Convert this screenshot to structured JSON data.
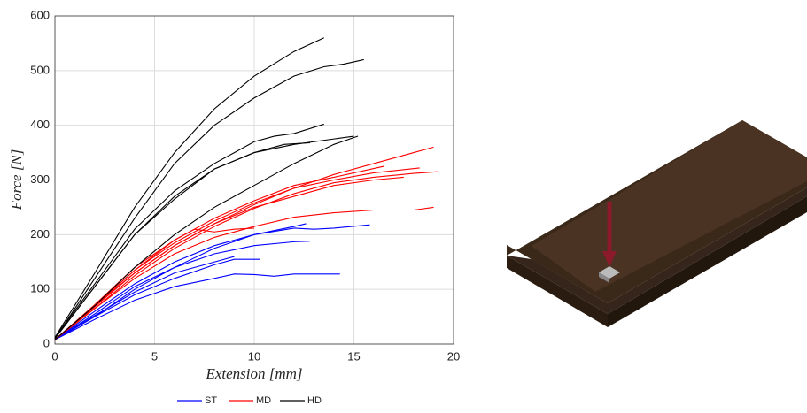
{
  "chart_data": {
    "type": "line",
    "x_label": "Extension [mm]",
    "y_label": "Force [N]",
    "xlim": [
      0,
      20
    ],
    "xticks": [
      0,
      5,
      10,
      15,
      20
    ],
    "ylim": [
      0,
      600
    ],
    "yticks": [
      0,
      100,
      200,
      300,
      400,
      500,
      600
    ],
    "grid": true,
    "legend": "bottom",
    "series": [
      {
        "name": "ST",
        "color": "#0000ff",
        "curves": [
          {
            "x": [
              0,
              2,
              4,
              6,
              8,
              10,
              12,
              13,
              14,
              15.8
            ],
            "values": [
              8,
              50,
              100,
              140,
              175,
              200,
              212,
              210,
              212,
              218
            ]
          },
          {
            "x": [
              0,
              2,
              4,
              6,
              8,
              10,
              12,
              12.8
            ],
            "values": [
              8,
              55,
              105,
              140,
              165,
              180,
              187,
              188
            ]
          },
          {
            "x": [
              0,
              2,
              4,
              6,
              8,
              10,
              12,
              12.6
            ],
            "values": [
              8,
              60,
              110,
              150,
              180,
              200,
              215,
              220
            ]
          },
          {
            "x": [
              0,
              2,
              4,
              6,
              8,
              9,
              10.3
            ],
            "values": [
              8,
              50,
              90,
              120,
              145,
              155,
              155
            ]
          },
          {
            "x": [
              0,
              2,
              4,
              6,
              8,
              9,
              10,
              11,
              12,
              14.3
            ],
            "values": [
              8,
              45,
              80,
              105,
              120,
              128,
              127,
              124,
              128,
              128
            ]
          },
          {
            "x": [
              0,
              2,
              4,
              6,
              8,
              9
            ],
            "values": [
              8,
              52,
              95,
              130,
              150,
              160
            ]
          }
        ]
      },
      {
        "name": "MD",
        "color": "#ff0000",
        "curves": [
          {
            "x": [
              0,
              2,
              4,
              6,
              8,
              10,
              12,
              14,
              16,
              18,
              19
            ],
            "values": [
              8,
              70,
              130,
              180,
              220,
              255,
              285,
              310,
              330,
              350,
              360
            ]
          },
          {
            "x": [
              0,
              2,
              4,
              6,
              8,
              10,
              12,
              14,
              16,
              18,
              19.2
            ],
            "values": [
              8,
              65,
              125,
              175,
              215,
              248,
              275,
              295,
              305,
              312,
              315
            ]
          },
          {
            "x": [
              0,
              2,
              4,
              6,
              8,
              10,
              12,
              14,
              16,
              18.3
            ],
            "values": [
              8,
              70,
              135,
              185,
              225,
              258,
              285,
              300,
              313,
              322
            ]
          },
          {
            "x": [
              0,
              2,
              4,
              6,
              8,
              10,
              12,
              14,
              16.5
            ],
            "values": [
              8,
              72,
              140,
              190,
              230,
              262,
              290,
              305,
              325
            ]
          },
          {
            "x": [
              0,
              2,
              4,
              6,
              8,
              10,
              12,
              14,
              16,
              17.5
            ],
            "values": [
              8,
              68,
              130,
              180,
              220,
              250,
              270,
              290,
              300,
              305
            ]
          },
          {
            "x": [
              0,
              2,
              4,
              6,
              8,
              10,
              12,
              14,
              16,
              18,
              19
            ],
            "values": [
              8,
              65,
              120,
              165,
              195,
              215,
              232,
              240,
              245,
              245,
              250
            ]
          },
          {
            "x": [
              0,
              2,
              4,
              6,
              7,
              8,
              9,
              10
            ],
            "values": [
              8,
              70,
              135,
              190,
              210,
              205,
              210,
              212
            ]
          }
        ]
      },
      {
        "name": "HD",
        "color": "#000000",
        "curves": [
          {
            "x": [
              0,
              2,
              4,
              6,
              8,
              10,
              12,
              13.5
            ],
            "values": [
              12,
              130,
              250,
              350,
              430,
              490,
              535,
              560
            ]
          },
          {
            "x": [
              0,
              2,
              4,
              6,
              8,
              10,
              12,
              13.5,
              14.5,
              15.5
            ],
            "values": [
              10,
              120,
              230,
              330,
              400,
              450,
              490,
              507,
              512,
              520
            ]
          },
          {
            "x": [
              0,
              2,
              4,
              6,
              8,
              10,
              11,
              12,
              13.5
            ],
            "values": [
              12,
              110,
              210,
              280,
              330,
              370,
              380,
              385,
              402
            ]
          },
          {
            "x": [
              0,
              2,
              4,
              6,
              8,
              10,
              12,
              14,
              15
            ],
            "values": [
              10,
              105,
              200,
              265,
              320,
              350,
              365,
              375,
              380
            ]
          },
          {
            "x": [
              0,
              2,
              4,
              6,
              8,
              10,
              12,
              14,
              15.2
            ],
            "values": [
              8,
              70,
              140,
              200,
              250,
              290,
              330,
              365,
              380
            ]
          },
          {
            "x": [
              0,
              2,
              4,
              6,
              8,
              10,
              11.5,
              12.8
            ],
            "values": [
              10,
              105,
              200,
              270,
              320,
              350,
              365,
              368
            ]
          }
        ]
      }
    ]
  }
}
